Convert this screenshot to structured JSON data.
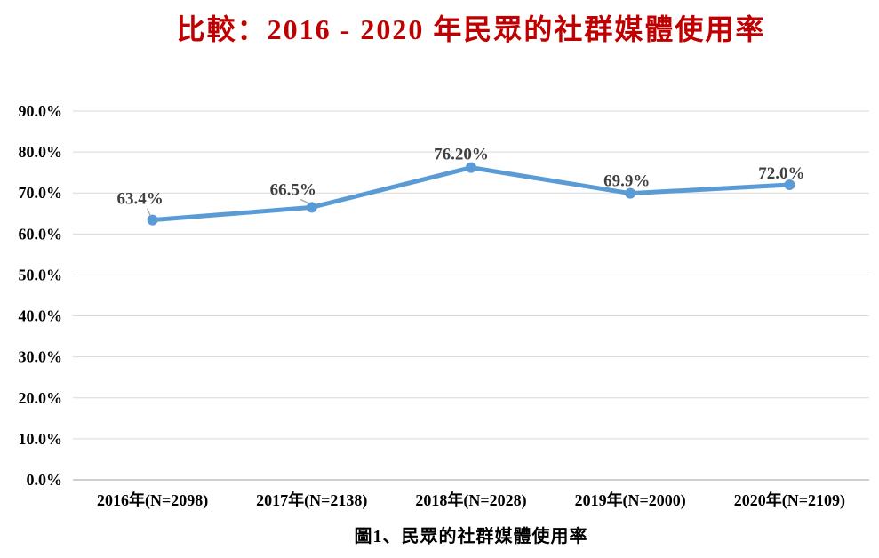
{
  "colors": {
    "title": "#C00000",
    "series_line": "#5B9BD5",
    "marker": "#5B9BD5",
    "gridline": "#D9D9D9",
    "axis_baseline": "#BFBFBF",
    "data_label": "#404040",
    "axis_text": "#000000",
    "leader_line": "#A6A6A6",
    "background": "#FFFFFF"
  },
  "chart_data": {
    "type": "line",
    "title": "比較：2016 - 2020 年民眾的社群媒體使用率",
    "caption": "圖1、民眾的社群媒體使用率",
    "categories": [
      "2016年(N=2098)",
      "2017年(N=2138)",
      "2018年(N=2028)",
      "2019年(N=2000)",
      "2020年(N=2109)"
    ],
    "series": [
      {
        "name": "民眾的社群媒體使用率",
        "values": [
          63.4,
          66.5,
          76.2,
          69.9,
          72.0
        ]
      }
    ],
    "data_labels": [
      "63.4%",
      "66.5%",
      "76.20%",
      "69.9%",
      "72.0%"
    ],
    "xlabel": "",
    "ylabel": "",
    "ylim": [
      0,
      90
    ],
    "ytick_step": 10,
    "ytick_labels": [
      "0.0%",
      "10.0%",
      "20.0%",
      "30.0%",
      "40.0%",
      "50.0%",
      "60.0%",
      "70.0%",
      "80.0%",
      "90.0%"
    ],
    "grid": true,
    "legend": false,
    "marker": "circle"
  }
}
